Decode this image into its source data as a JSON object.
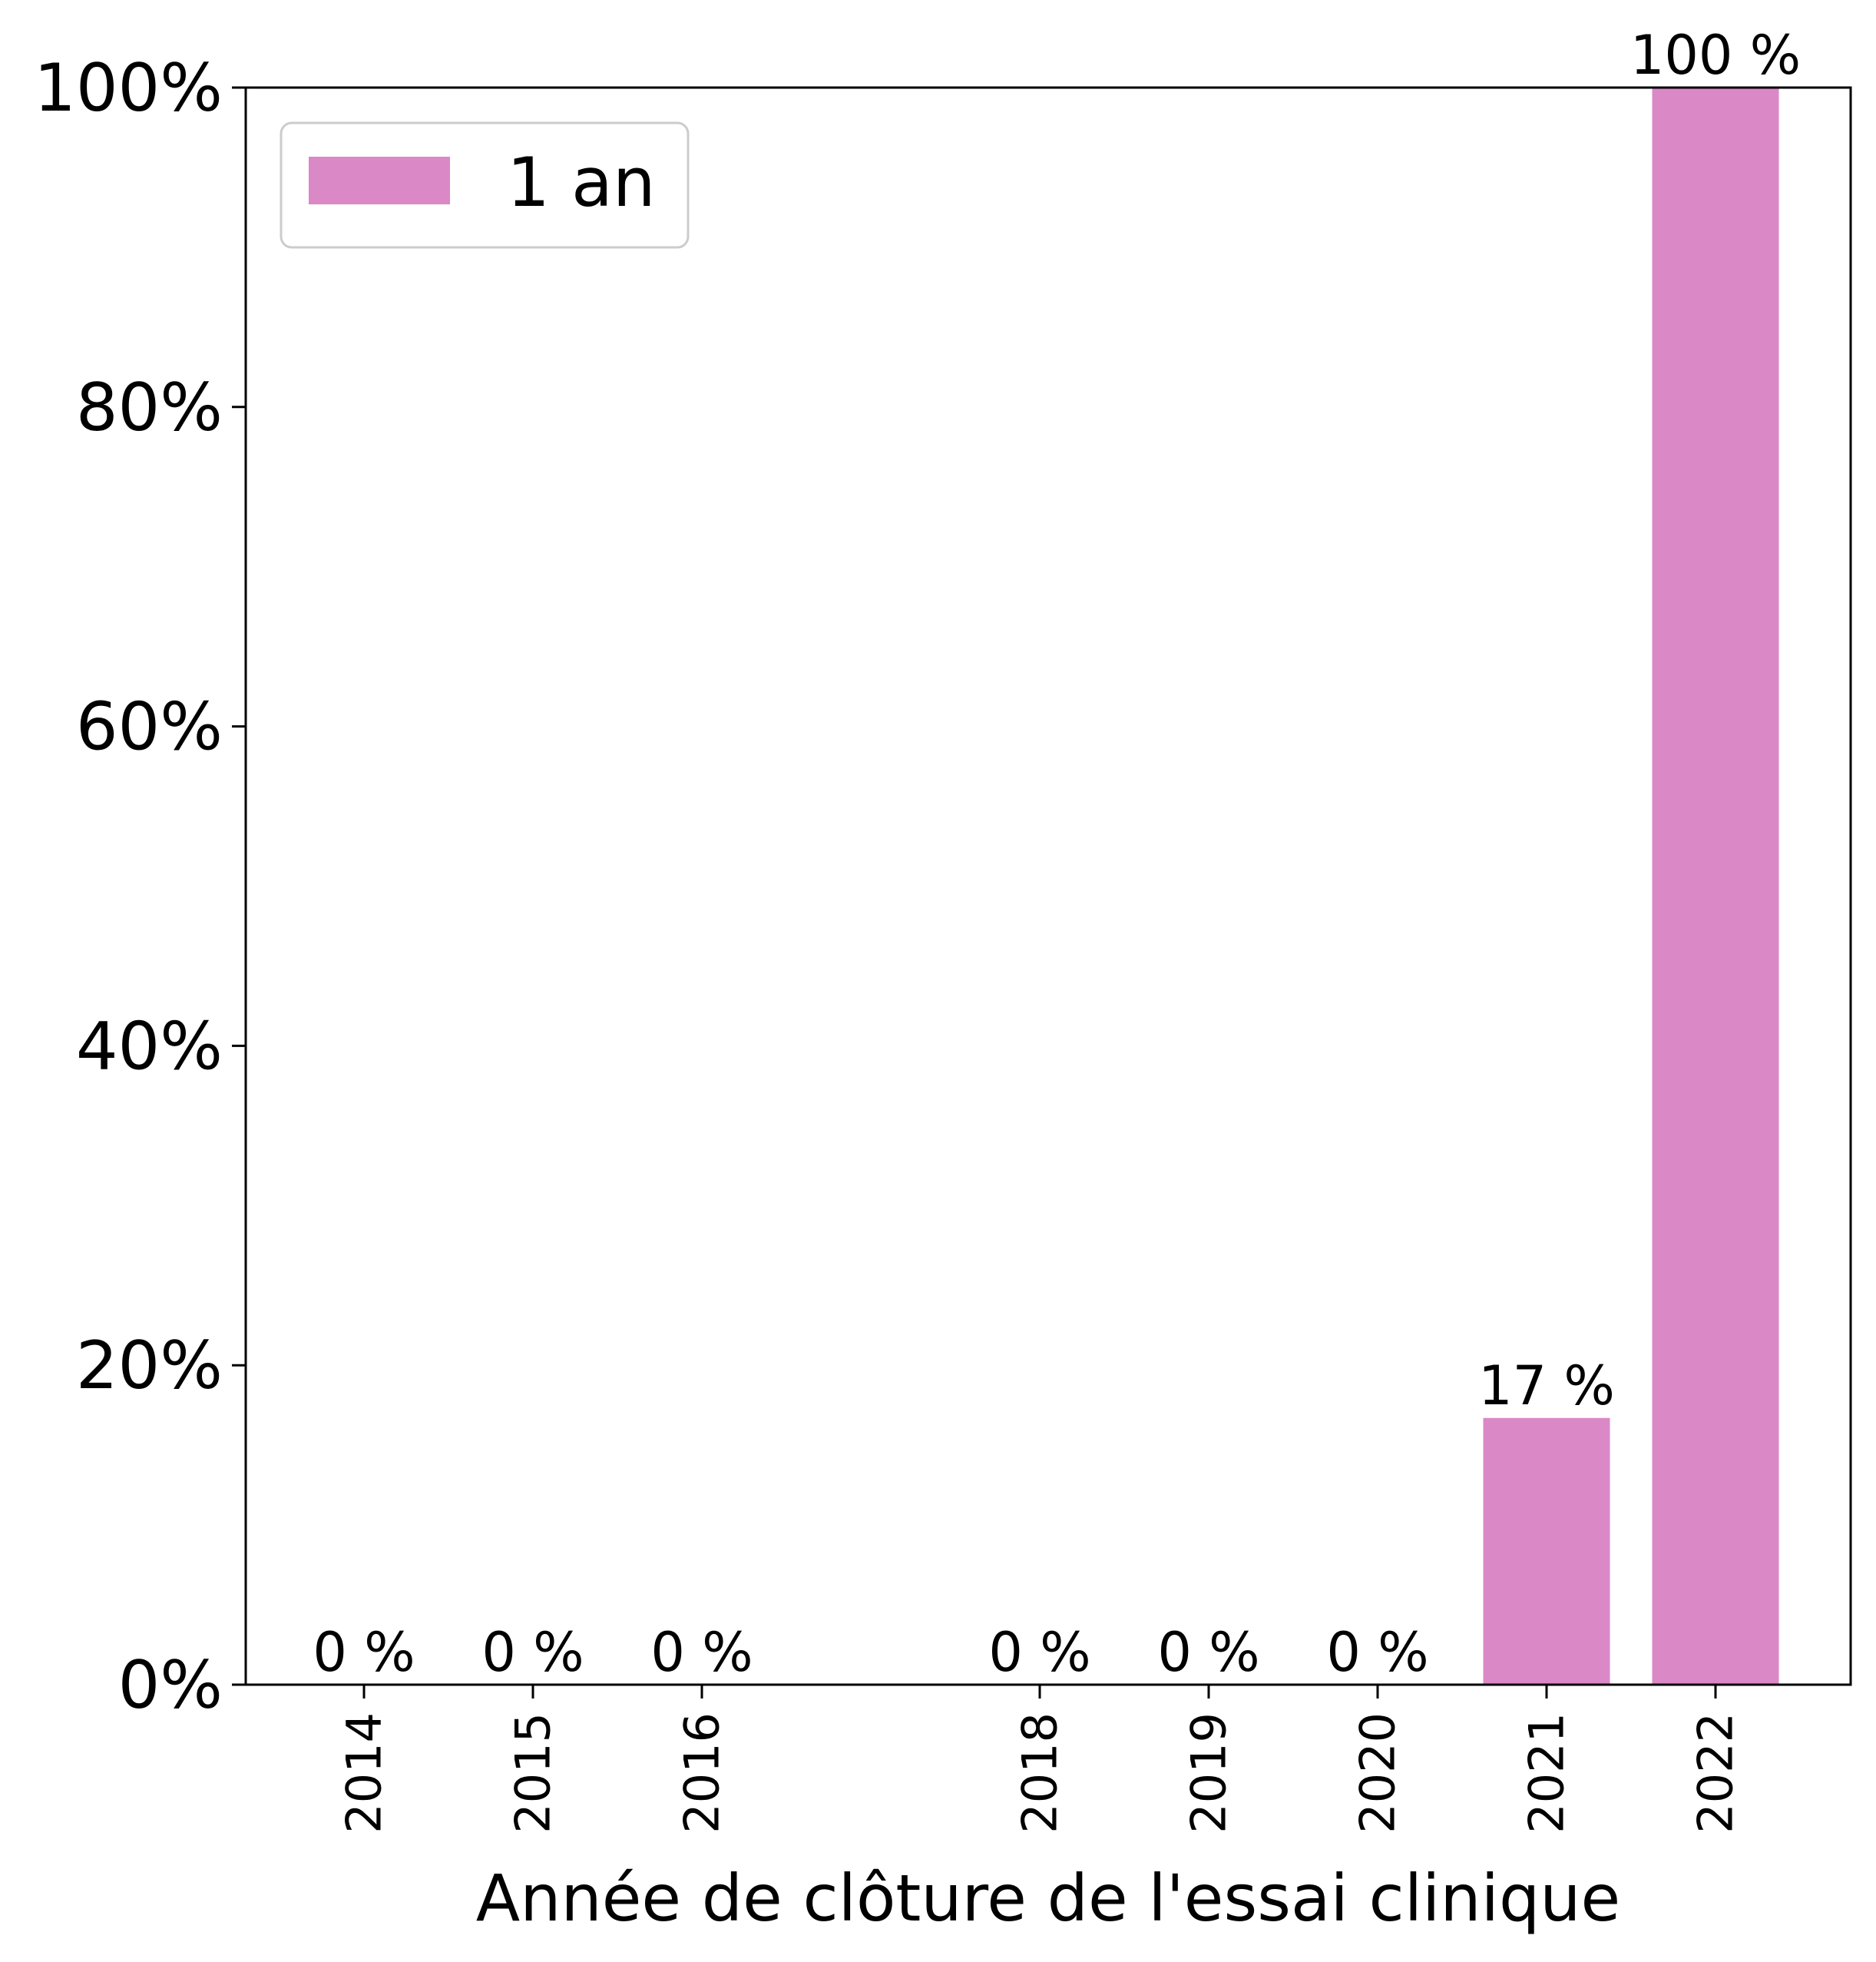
{
  "chart_data": {
    "type": "bar",
    "categories": [
      "2014",
      "2015",
      "2016",
      "2018",
      "2019",
      "2020",
      "2021",
      "2022"
    ],
    "x": [
      2014,
      2015,
      2016,
      2018,
      2019,
      2020,
      2021,
      2022
    ],
    "series": [
      {
        "name": "1 an",
        "values": [
          0,
          0,
          0,
          0,
          0,
          0,
          16.7,
          100
        ],
        "labels": [
          "0 %",
          "0 %",
          "0 %",
          "0 %",
          "0 %",
          "0 %",
          "17 %",
          "100 %"
        ],
        "color": "#db88c7"
      }
    ],
    "title": "",
    "xlabel": "Année de clôture de l'essai clinique",
    "ylabel": "",
    "xlim": [
      2013.3,
      2022.8
    ],
    "ylim": [
      0,
      100
    ],
    "yticks": [
      0,
      20,
      40,
      60,
      80,
      100
    ],
    "ytick_labels": [
      "0%",
      "20%",
      "40%",
      "60%",
      "80%",
      "100%"
    ],
    "xtick_rotation": 90,
    "grid": false,
    "legend_position": "top-left"
  }
}
